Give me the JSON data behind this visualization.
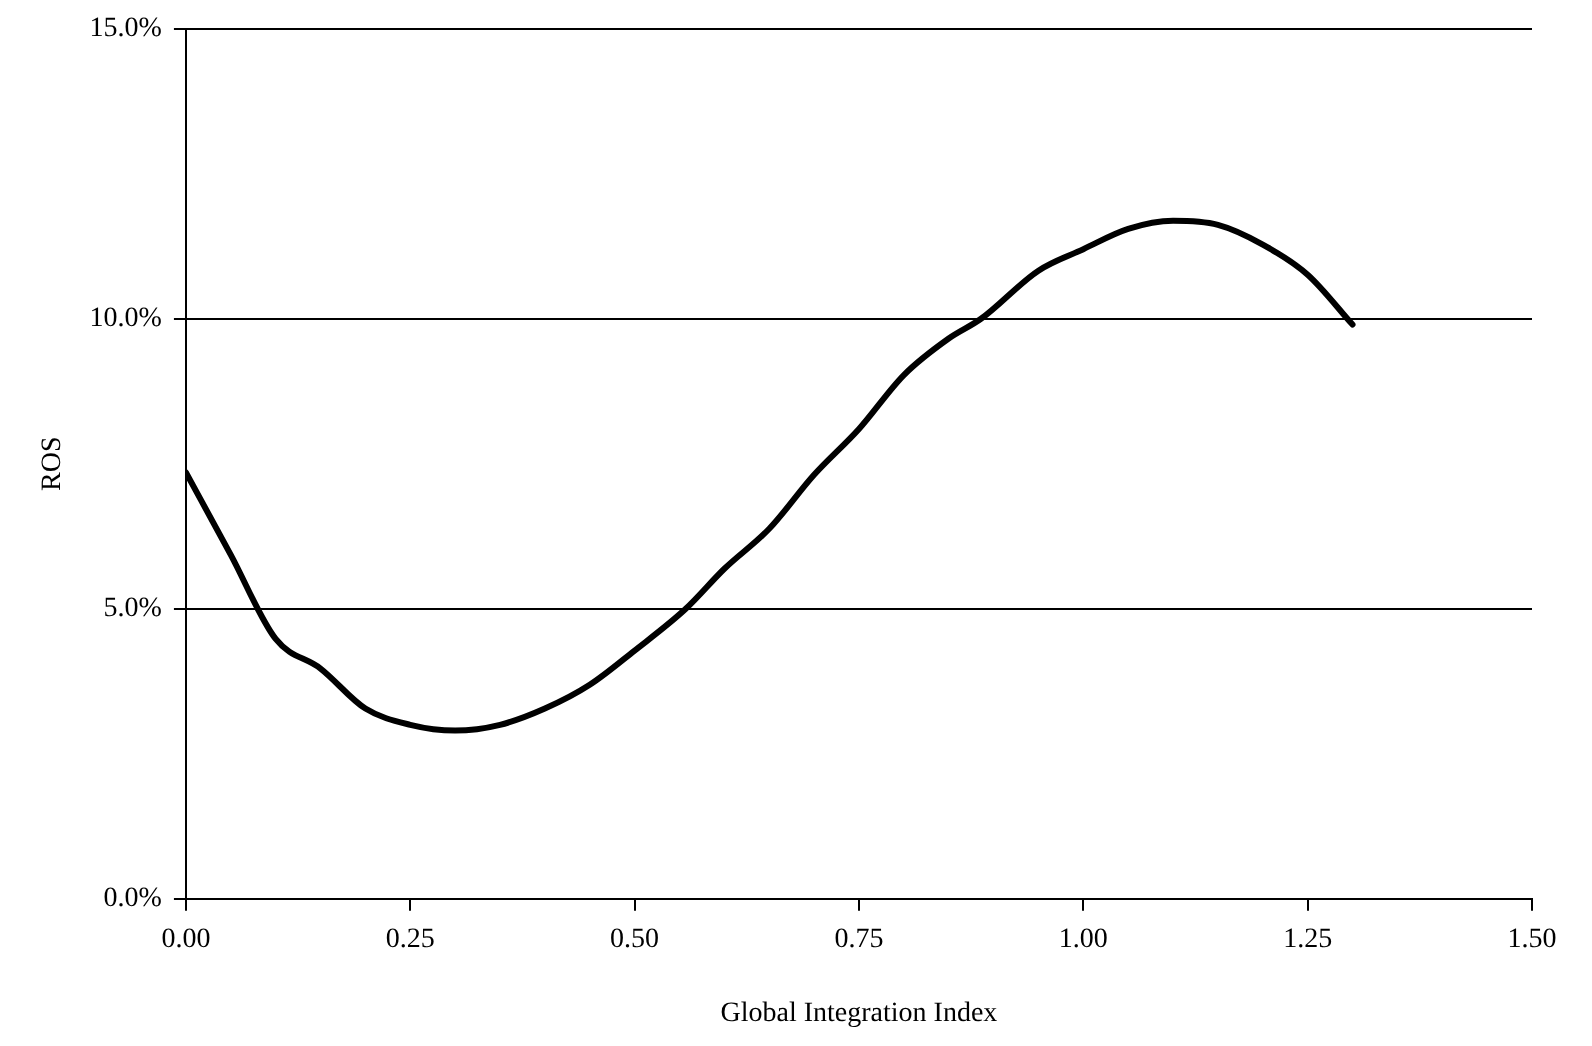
{
  "chart_data": {
    "type": "line",
    "xlabel": "Global Integration Index",
    "ylabel": "ROS",
    "x": [
      0,
      0.05,
      0.1,
      0.15,
      0.2,
      0.25,
      0.3,
      0.35,
      0.4,
      0.45,
      0.5,
      0.557,
      0.6,
      0.65,
      0.7,
      0.75,
      0.8,
      0.85,
      0.886,
      0.95,
      1.0,
      1.05,
      1.1,
      1.15,
      1.2,
      1.25,
      1.3
    ],
    "series": [
      {
        "color": "#000000",
        "values": [
          7.35,
          5.93,
          4.48,
          3.97,
          3.28,
          3.0,
          2.9,
          3.0,
          3.28,
          3.69,
          4.28,
          5.0,
          5.69,
          6.38,
          7.31,
          8.1,
          9.03,
          9.66,
          10.0,
          10.83,
          11.2,
          11.55,
          11.69,
          11.62,
          11.28,
          10.76,
          9.9
        ]
      }
    ],
    "xlim": [
      0,
      1.5
    ],
    "xticks": [
      {
        "value": 0,
        "label": "0.00"
      },
      {
        "value": 0.25,
        "label": "0.25"
      },
      {
        "value": 0.5,
        "label": "0.50"
      },
      {
        "value": 0.75,
        "label": "0.75"
      },
      {
        "value": 1,
        "label": "1.00"
      },
      {
        "value": 1.25,
        "label": "1.25"
      },
      {
        "value": 1.5,
        "label": "1.50"
      }
    ],
    "ylim": [
      0,
      15
    ],
    "yticks": [
      {
        "value": 0,
        "label": "0.0%"
      },
      {
        "value": 5,
        "label": "5.0%"
      },
      {
        "value": 10,
        "label": "10.0%"
      },
      {
        "value": 15,
        "label": "15.0%"
      }
    ],
    "grid": "y",
    "legend": false,
    "marker": "none",
    "line_style": "solid"
  }
}
